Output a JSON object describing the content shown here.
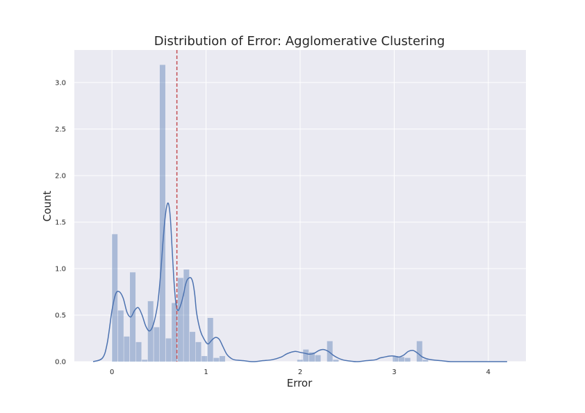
{
  "chart_data": {
    "type": "bar",
    "title": "Distribution of Error: Agglomerative Clustering",
    "xlabel": "Error",
    "ylabel": "Count",
    "xlim": [
      -0.4,
      4.4
    ],
    "ylim": [
      0,
      3.35
    ],
    "xticks": [
      0,
      1,
      2,
      3,
      4
    ],
    "yticks": [
      0.0,
      0.5,
      1.0,
      1.5,
      2.0,
      2.5,
      3.0
    ],
    "grid": true,
    "bin_width": 0.0635,
    "bins": [
      {
        "x0": 0.0,
        "value": 1.37
      },
      {
        "x0": 0.064,
        "value": 0.55
      },
      {
        "x0": 0.127,
        "value": 0.27
      },
      {
        "x0": 0.191,
        "value": 0.96
      },
      {
        "x0": 0.254,
        "value": 0.21
      },
      {
        "x0": 0.318,
        "value": 0.02
      },
      {
        "x0": 0.381,
        "value": 0.65
      },
      {
        "x0": 0.445,
        "value": 0.37
      },
      {
        "x0": 0.508,
        "value": 3.19
      },
      {
        "x0": 0.572,
        "value": 0.25
      },
      {
        "x0": 0.635,
        "value": 0.63
      },
      {
        "x0": 0.699,
        "value": 0.9
      },
      {
        "x0": 0.762,
        "value": 0.99
      },
      {
        "x0": 0.826,
        "value": 0.32
      },
      {
        "x0": 0.889,
        "value": 0.21
      },
      {
        "x0": 0.953,
        "value": 0.06
      },
      {
        "x0": 1.016,
        "value": 0.47
      },
      {
        "x0": 1.08,
        "value": 0.04
      },
      {
        "x0": 1.143,
        "value": 0.06
      },
      {
        "x0": 1.969,
        "value": 0.02
      },
      {
        "x0": 2.032,
        "value": 0.13
      },
      {
        "x0": 2.096,
        "value": 0.1
      },
      {
        "x0": 2.159,
        "value": 0.07
      },
      {
        "x0": 2.286,
        "value": 0.22
      },
      {
        "x0": 2.35,
        "value": 0.02
      },
      {
        "x0": 2.985,
        "value": 0.06
      },
      {
        "x0": 3.048,
        "value": 0.05
      },
      {
        "x0": 3.112,
        "value": 0.04
      },
      {
        "x0": 3.239,
        "value": 0.22
      },
      {
        "x0": 3.302,
        "value": 0.02
      }
    ],
    "kde": {
      "x": [
        -0.2,
        -0.1,
        -0.05,
        0.0,
        0.04,
        0.08,
        0.12,
        0.16,
        0.2,
        0.24,
        0.28,
        0.32,
        0.36,
        0.4,
        0.44,
        0.48,
        0.5,
        0.52,
        0.54,
        0.56,
        0.58,
        0.6,
        0.62,
        0.64,
        0.66,
        0.68,
        0.7,
        0.72,
        0.74,
        0.76,
        0.78,
        0.8,
        0.82,
        0.84,
        0.86,
        0.88,
        0.9,
        0.94,
        0.98,
        1.02,
        1.06,
        1.1,
        1.14,
        1.18,
        1.22,
        1.26,
        1.3,
        1.4,
        1.5,
        1.6,
        1.7,
        1.8,
        1.85,
        1.9,
        1.95,
        2.0,
        2.05,
        2.1,
        2.15,
        2.2,
        2.25,
        2.3,
        2.35,
        2.4,
        2.45,
        2.5,
        2.6,
        2.7,
        2.8,
        2.85,
        2.9,
        2.95,
        3.0,
        3.05,
        3.1,
        3.15,
        3.2,
        3.25,
        3.3,
        3.35,
        3.4,
        3.5,
        3.6,
        3.8,
        4.0,
        4.2
      ],
      "y": [
        0.0,
        0.04,
        0.2,
        0.55,
        0.73,
        0.75,
        0.68,
        0.53,
        0.48,
        0.55,
        0.58,
        0.5,
        0.38,
        0.33,
        0.4,
        0.58,
        0.75,
        0.98,
        1.26,
        1.5,
        1.66,
        1.7,
        1.55,
        1.2,
        0.85,
        0.62,
        0.55,
        0.58,
        0.64,
        0.72,
        0.82,
        0.88,
        0.9,
        0.9,
        0.85,
        0.72,
        0.52,
        0.33,
        0.24,
        0.19,
        0.23,
        0.26,
        0.24,
        0.16,
        0.08,
        0.04,
        0.02,
        0.01,
        0.0,
        0.01,
        0.02,
        0.05,
        0.08,
        0.1,
        0.11,
        0.1,
        0.09,
        0.08,
        0.09,
        0.12,
        0.13,
        0.11,
        0.07,
        0.04,
        0.02,
        0.01,
        0.0,
        0.01,
        0.02,
        0.04,
        0.05,
        0.06,
        0.06,
        0.05,
        0.07,
        0.11,
        0.12,
        0.09,
        0.05,
        0.03,
        0.02,
        0.01,
        0.0,
        0.0,
        0.0,
        0.0
      ]
    },
    "reference_line": {
      "x": 0.69
    },
    "colors": {
      "plot_background": "#eaeaf2",
      "grid": "#ffffff",
      "bar_fill": "#4c72b0",
      "bar_opacity": 0.4,
      "kde_line": "#4c72b0",
      "reference_line": "#c44e52"
    }
  }
}
